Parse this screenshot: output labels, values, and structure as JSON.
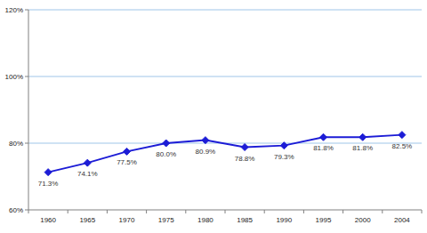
{
  "chart_data": {
    "type": "line",
    "categories": [
      "1960",
      "1965",
      "1970",
      "1975",
      "1980",
      "1985",
      "1990",
      "1995",
      "2000",
      "2004"
    ],
    "values": [
      71.3,
      74.1,
      77.5,
      80.0,
      80.9,
      78.8,
      79.3,
      81.8,
      81.8,
      82.5
    ],
    "value_labels": [
      "71.3%",
      "74.1%",
      "77.5%",
      "80.0%",
      "80.9%",
      "78.8%",
      "79.3%",
      "81.8%",
      "81.8%",
      "82.5%"
    ],
    "color": "#1c1cd6",
    "marker": "diamond",
    "ylim": [
      60,
      120
    ],
    "yticks": [
      {
        "value": 60,
        "label": "60%"
      },
      {
        "value": 80,
        "label": "80%"
      },
      {
        "value": 100,
        "label": "100%"
      },
      {
        "value": 120,
        "label": "120%"
      }
    ],
    "grid": true,
    "data_labels": true
  }
}
